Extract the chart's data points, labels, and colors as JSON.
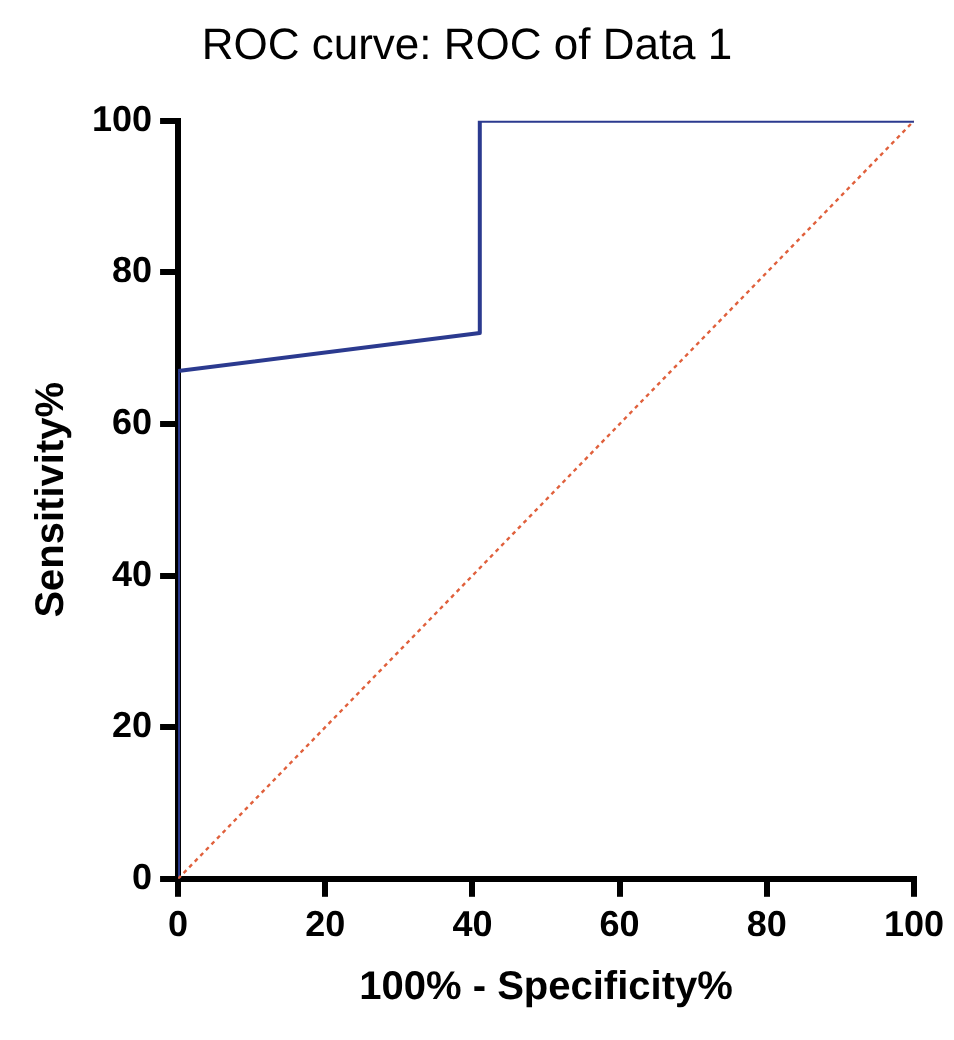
{
  "chart_data": {
    "type": "line",
    "title": "ROC curve: ROC of Data 1",
    "xlabel": "100% - Specificity%",
    "ylabel": "Sensitivity%",
    "xlim": [
      0,
      100
    ],
    "ylim": [
      0,
      100
    ],
    "xticks": [
      0,
      20,
      40,
      60,
      80,
      100
    ],
    "yticks": [
      0,
      20,
      40,
      60,
      80,
      100
    ],
    "grid": false,
    "legend": false,
    "marker": "none",
    "series": [
      {
        "color": "#2b3a8f",
        "x": [
          0,
          0,
          41,
          41,
          100
        ],
        "values": [
          0,
          67,
          72,
          100,
          100
        ],
        "line_style": "solid"
      },
      {
        "color": "#e0603c",
        "x": [
          0,
          100
        ],
        "values": [
          0,
          100
        ],
        "line_style": "dotted"
      }
    ]
  }
}
